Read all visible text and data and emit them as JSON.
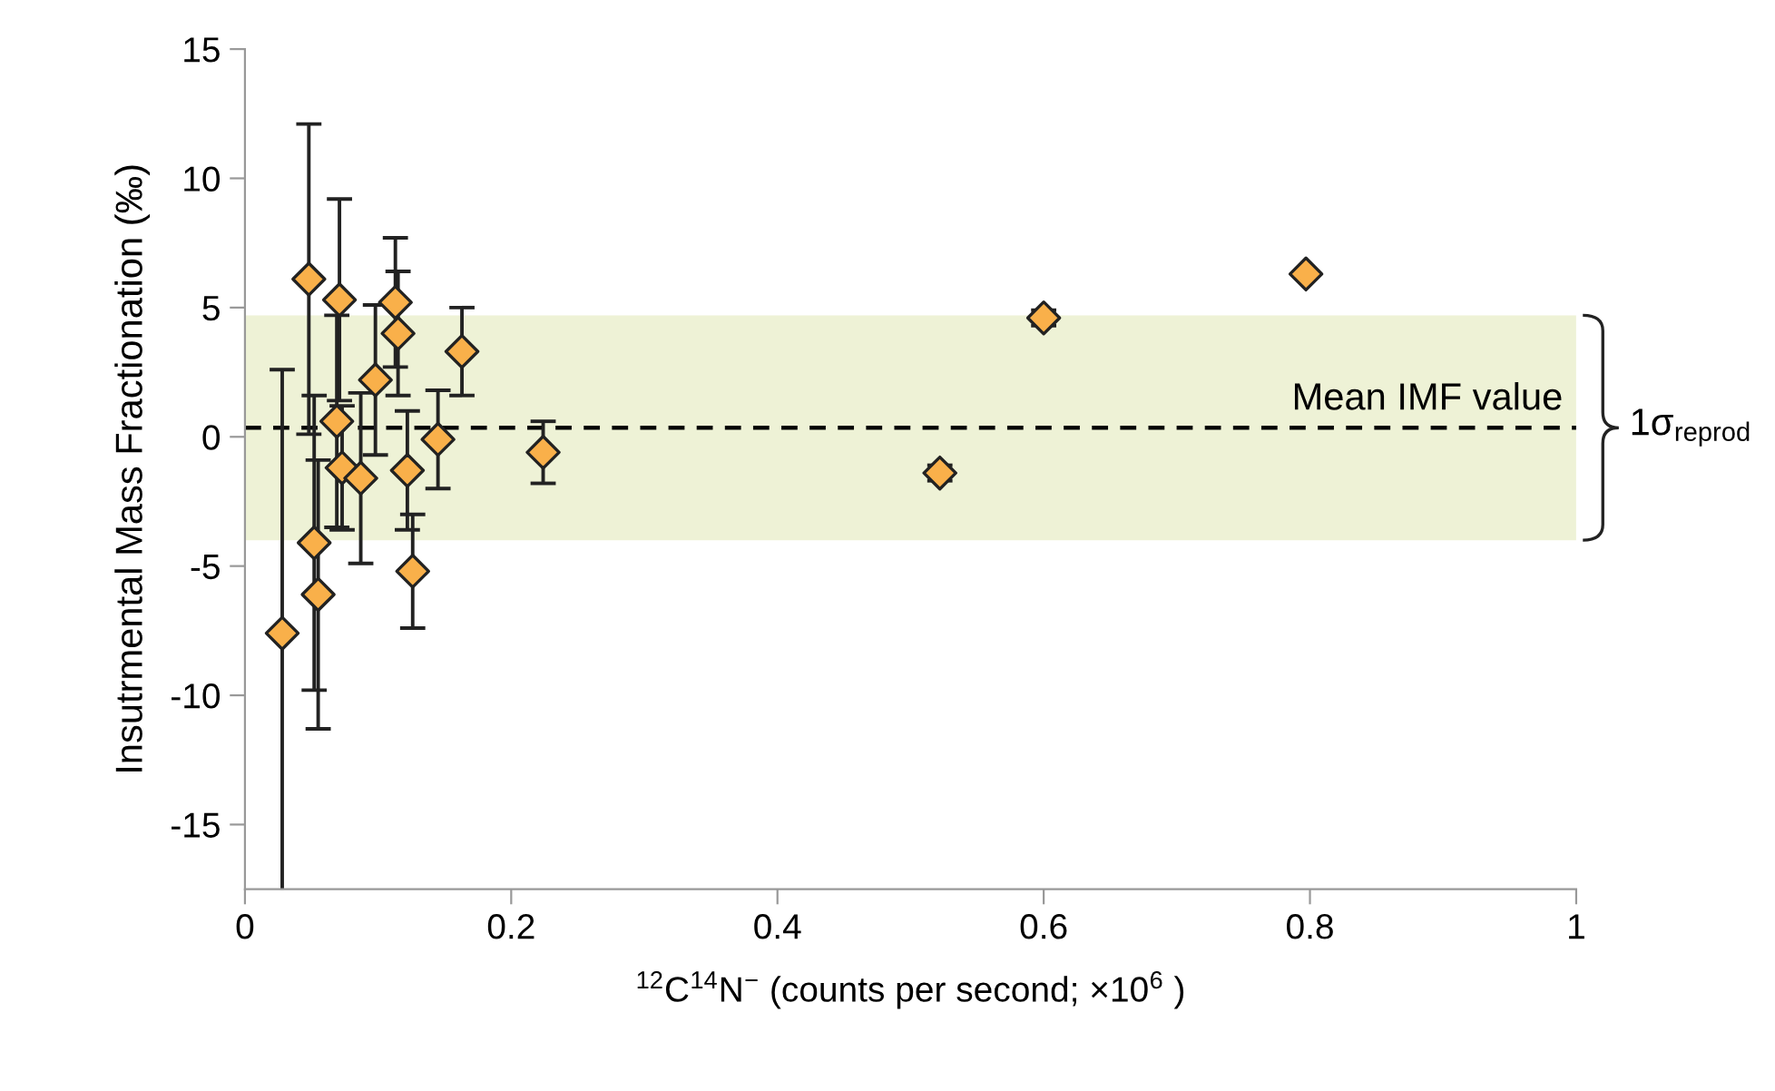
{
  "chart_data": {
    "type": "scatter",
    "xlabel": "$^{12}$C$^{14}$N$^{−}$ (counts per second; ×10$^{6}$ )",
    "ylabel": "Insutrmental Mass Fractionation (‰)",
    "x": [
      0.028,
      0.048,
      0.071,
      0.113,
      0.115,
      0.163,
      0.098,
      0.069,
      0.145,
      0.073,
      0.087,
      0.122,
      0.052,
      0.055,
      0.126,
      0.224,
      0.522,
      0.6,
      0.797
    ],
    "series": [
      {
        "color": "#f9b04a",
        "values": [
          -7.6,
          6.1,
          5.3,
          5.2,
          4.0,
          3.3,
          2.2,
          0.6,
          -0.1,
          -1.2,
          -1.6,
          -1.3,
          -4.1,
          -6.1,
          -5.2,
          -0.6,
          -1.4,
          4.6,
          6.3
        ],
        "errors": [
          10.2,
          6.0,
          3.9,
          2.5,
          2.4,
          1.7,
          2.9,
          4.1,
          1.9,
          2.4,
          3.3,
          2.3,
          5.7,
          5.2,
          2.2,
          1.2,
          0.3,
          0.3,
          null
        ]
      }
    ],
    "marker": "diamond",
    "xlim": [
      0,
      1
    ],
    "xticks": [
      0,
      0.2,
      0.4,
      0.6,
      0.8,
      1
    ],
    "ylim": [
      -17.5,
      15
    ],
    "yticks": [
      -15,
      -10,
      -5,
      0,
      5,
      10,
      15
    ],
    "grid": false,
    "ref_lines": [
      {
        "axis": "y",
        "value": 0.35,
        "label": "Mean IMF value",
        "color": "#000000",
        "line_style": "dashed"
      }
    ],
    "bands": [
      {
        "axis": "y",
        "from": -4.0,
        "to": 4.7,
        "label": "1σ$_{reprod}$",
        "color": "#eef2d6"
      }
    ]
  }
}
